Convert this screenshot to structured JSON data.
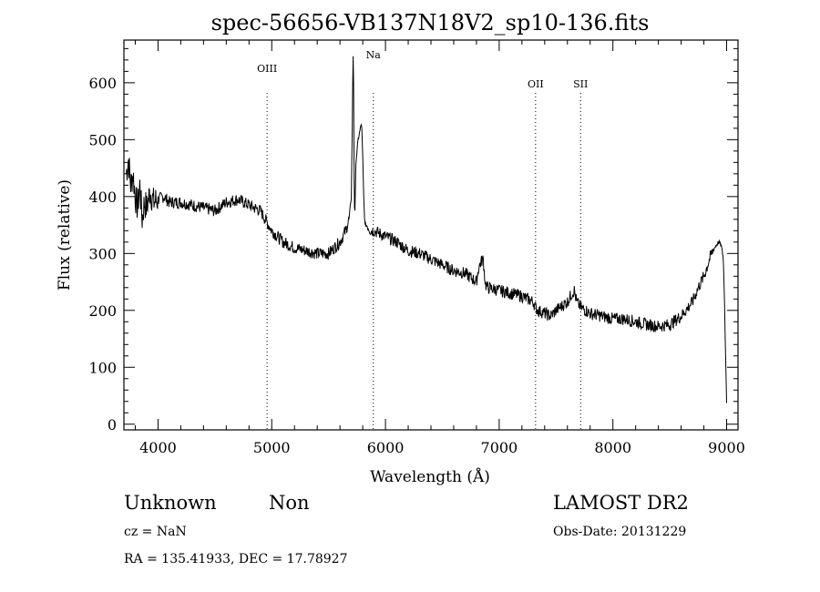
{
  "chart_data": {
    "type": "line",
    "title": "spec-56656-VB137N18V2_sp10-136.fits",
    "xlabel": "Wavelength (Å)",
    "ylabel": "Flux (relative)",
    "xlim": [
      3700,
      9100
    ],
    "ylim": [
      -10,
      675
    ],
    "x_ticks": [
      4000,
      5000,
      6000,
      7000,
      8000,
      9000
    ],
    "y_ticks": [
      0,
      100,
      200,
      300,
      400,
      500,
      600
    ],
    "grid": false,
    "spectral_lines": [
      {
        "label": "OIII",
        "x": 4959
      },
      {
        "label": "Na",
        "x": 5893
      },
      {
        "label": "OII",
        "x": 7320
      },
      {
        "label": "SII",
        "x": 7716
      }
    ],
    "series": [
      {
        "x": [
          3720,
          3740,
          3760,
          3780,
          3800,
          3820,
          3840,
          3860,
          3880,
          3900,
          3930,
          3960,
          4000,
          4050,
          4100,
          4200,
          4300,
          4400,
          4500,
          4600,
          4700,
          4800,
          4900,
          5000,
          5100,
          5200,
          5300,
          5400,
          5500,
          5550,
          5600,
          5650,
          5680,
          5700,
          5710,
          5715,
          5720,
          5725,
          5730,
          5740,
          5750,
          5760,
          5770,
          5780,
          5790,
          5800,
          5810,
          5820,
          5840,
          5870,
          5900,
          6000,
          6100,
          6200,
          6300,
          6400,
          6500,
          6600,
          6700,
          6800,
          6820,
          6840,
          6860,
          6870,
          6880,
          6900,
          7000,
          7100,
          7200,
          7300,
          7320,
          7340,
          7400,
          7450,
          7500,
          7600,
          7640,
          7660,
          7680,
          7720,
          7800,
          7900,
          8000,
          8100,
          8200,
          8300,
          8400,
          8500,
          8600,
          8700,
          8750,
          8800,
          8850,
          8880,
          8910,
          8930,
          8950,
          8970,
          8980,
          8990,
          9000,
          9003
        ],
        "y": [
          440,
          465,
          420,
          440,
          400,
          380,
          420,
          360,
          390,
          380,
          410,
          390,
          395,
          400,
          390,
          390,
          385,
          380,
          375,
          390,
          395,
          385,
          375,
          340,
          320,
          310,
          305,
          300,
          300,
          310,
          320,
          340,
          360,
          400,
          550,
          660,
          600,
          430,
          350,
          460,
          480,
          500,
          510,
          520,
          530,
          470,
          390,
          350,
          350,
          340,
          340,
          330,
          320,
          305,
          300,
          290,
          280,
          270,
          265,
          250,
          275,
          285,
          290,
          265,
          245,
          240,
          235,
          230,
          225,
          215,
          205,
          200,
          195,
          190,
          200,
          215,
          230,
          235,
          215,
          205,
          195,
          190,
          185,
          185,
          180,
          175,
          172,
          175,
          190,
          215,
          240,
          260,
          290,
          305,
          315,
          320,
          315,
          295,
          230,
          130,
          40,
          0
        ]
      }
    ]
  },
  "info": {
    "class_label": "Unknown",
    "subclass_label": "Non",
    "cz": "cz = NaN",
    "coords": "RA = 135.41933, DEC =  17.78927",
    "survey": "LAMOST DR2",
    "obs_date": "Obs-Date: 20131229"
  }
}
